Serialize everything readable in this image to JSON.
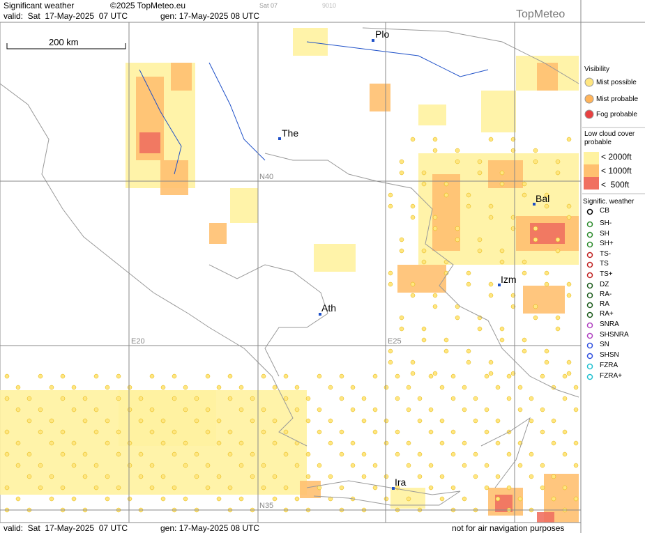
{
  "header": {
    "title": "Significant weather",
    "copyright": "©2025 TopMeteo.eu",
    "valid": "valid:  Sat  17-May-2025  07 UTC",
    "gen": "gen: 17-May-2025 08 UTC",
    "stamp": "Sat 07",
    "code": "9010",
    "logo": "TopMeteo"
  },
  "map": {
    "scale": "200 km",
    "cities": [
      "Plo",
      "The",
      "Bal",
      "Izm",
      "Ath",
      "Ira"
    ],
    "grid_labels": [
      "N40",
      "E20",
      "E25",
      "N35"
    ]
  },
  "legend": {
    "visibility": {
      "title": "Visibility",
      "items": [
        "Mist possible",
        "Mist probable",
        "Fog probable"
      ]
    },
    "low_cloud": {
      "title": "Low cloud cover probable",
      "items": [
        "< 2000ft",
        "< 1000ft",
        "<  500ft"
      ]
    },
    "weather": {
      "title": "Signific. weather",
      "items": [
        "CB",
        "SH-",
        "SH",
        "SH+",
        "TS-",
        "TS",
        "TS+",
        "DZ",
        "RA-",
        "RA",
        "RA+",
        "SNRA",
        "SHSNRA",
        "SN",
        "SHSN",
        "FZRA",
        "FZRA+"
      ]
    }
  },
  "footer": {
    "valid": "valid:  Sat  17-May-2025  07 UTC",
    "gen": "gen: 17-May-2025 08 UTC",
    "note": "not for air navigation purposes"
  }
}
